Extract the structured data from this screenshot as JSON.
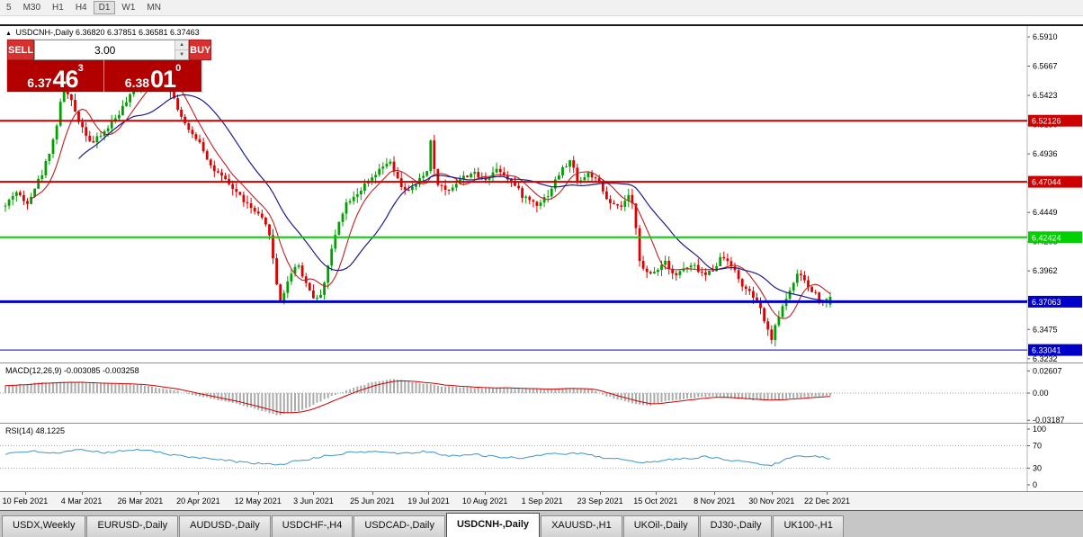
{
  "toolbar": {
    "timeframes": [
      "5",
      "M30",
      "H1",
      "H4",
      "D1",
      "W1",
      "MN"
    ],
    "active": "D1"
  },
  "icons": {
    "symbol_arrow": "▲",
    "up_arrow": "▲",
    "down_arrow": "▼"
  },
  "trade_panel": {
    "sell_label": "SELL",
    "buy_label": "BUY",
    "volume": "3.00",
    "sell_price": {
      "big": "6.37",
      "huge": "46",
      "sup": "3"
    },
    "buy_price": {
      "big": "6.38",
      "huge": "01",
      "sup": "0"
    }
  },
  "tabs": {
    "items": [
      "USDX,Weekly",
      "EURUSD-,Daily",
      "AUDUSD-,Daily",
      "USDCHF-,H4",
      "USDCAD-,Daily",
      "USDCNH-,Daily",
      "XAUUSD-,H1",
      "UKOil-,Daily",
      "DJ30-,Daily",
      "UK100-,H1"
    ],
    "active": "USDCNH-,Daily"
  },
  "chart_data": {
    "type": "candlestick",
    "symbol": "USDCNH-",
    "timeframe": "Daily",
    "header": "USDCNH-,Daily 6.36820 6.37851 6.36581 6.37463",
    "open": 6.3682,
    "high": 6.37851,
    "low": 6.36581,
    "close": 6.37463,
    "ylim": [
      6.32,
      6.6
    ],
    "candle_count": 226,
    "colors": {
      "up": "#00A000",
      "down": "#DD0000",
      "ma_fast": "#C02020",
      "ma_slow": "#1C1C8C",
      "macd_hist": "#ABABAB",
      "macd_signal": "#CC0000",
      "rsi": "#3A96C8"
    },
    "price_axis": [
      {
        "label": "6.5910",
        "price": 6.591
      },
      {
        "label": "6.5667",
        "price": 6.56665
      },
      {
        "label": "6.5423",
        "price": 6.5423
      },
      {
        "label": "6.5180",
        "price": 6.51795
      },
      {
        "label": "6.4936",
        "price": 6.4936
      },
      {
        "label": "6.4693",
        "price": 6.46925
      },
      {
        "label": "6.4449",
        "price": 6.4449
      },
      {
        "label": "6.4206",
        "price": 6.42055
      },
      {
        "label": "6.3962",
        "price": 6.3962
      },
      {
        "label": "6.3719",
        "price": 6.37185
      },
      {
        "label": "6.3475",
        "price": 6.3475
      },
      {
        "label": "6.3232",
        "price": 6.32315
      }
    ],
    "hlines": [
      {
        "label": "6.52126",
        "price": 6.52126,
        "color": "#CC0000",
        "width": 2
      },
      {
        "label": "6.47044",
        "price": 6.47044,
        "color": "#CC0000",
        "width": 2
      },
      {
        "label": "6.42424",
        "price": 6.42424,
        "color": "#00D000",
        "width": 2
      },
      {
        "label": "6.37063",
        "price": 6.37063,
        "color": "#0000C8",
        "width": 3
      },
      {
        "label": "6.33041",
        "price": 6.33041,
        "color": "#0000C8",
        "width": 1
      }
    ],
    "date_axis": [
      {
        "label": "10 Feb 2021",
        "f": 0.026
      },
      {
        "label": "4 Mar 2021",
        "f": 0.094
      },
      {
        "label": "26 Mar 2021",
        "f": 0.165
      },
      {
        "label": "20 Apr 2021",
        "f": 0.235
      },
      {
        "label": "12 May 2021",
        "f": 0.307
      },
      {
        "label": "3 Jun 2021",
        "f": 0.374
      },
      {
        "label": "25 Jun 2021",
        "f": 0.445
      },
      {
        "label": "19 Jul 2021",
        "f": 0.513
      },
      {
        "label": "10 Aug 2021",
        "f": 0.581
      },
      {
        "label": "1 Sep 2021",
        "f": 0.65
      },
      {
        "label": "23 Sep 2021",
        "f": 0.72
      },
      {
        "label": "15 Oct 2021",
        "f": 0.787
      },
      {
        "label": "8 Nov 2021",
        "f": 0.858
      },
      {
        "label": "30 Nov 2021",
        "f": 0.927
      },
      {
        "label": "22 Dec 2021",
        "f": 0.994
      }
    ],
    "price_anchors": [
      [
        0.0,
        6.45
      ],
      [
        0.012,
        6.463
      ],
      [
        0.025,
        6.452
      ],
      [
        0.045,
        6.478
      ],
      [
        0.06,
        6.51
      ],
      [
        0.07,
        6.548
      ],
      [
        0.078,
        6.54
      ],
      [
        0.09,
        6.52
      ],
      [
        0.105,
        6.502
      ],
      [
        0.12,
        6.512
      ],
      [
        0.135,
        6.525
      ],
      [
        0.15,
        6.54
      ],
      [
        0.165,
        6.556
      ],
      [
        0.18,
        6.562
      ],
      [
        0.195,
        6.556
      ],
      [
        0.21,
        6.53
      ],
      [
        0.222,
        6.512
      ],
      [
        0.235,
        6.505
      ],
      [
        0.25,
        6.482
      ],
      [
        0.265,
        6.472
      ],
      [
        0.28,
        6.462
      ],
      [
        0.295,
        6.45
      ],
      [
        0.31,
        6.44
      ],
      [
        0.32,
        6.428
      ],
      [
        0.328,
        6.388
      ],
      [
        0.333,
        6.372
      ],
      [
        0.34,
        6.382
      ],
      [
        0.348,
        6.398
      ],
      [
        0.355,
        6.402
      ],
      [
        0.363,
        6.388
      ],
      [
        0.372,
        6.376
      ],
      [
        0.378,
        6.372
      ],
      [
        0.385,
        6.382
      ],
      [
        0.395,
        6.412
      ],
      [
        0.405,
        6.44
      ],
      [
        0.415,
        6.455
      ],
      [
        0.428,
        6.462
      ],
      [
        0.44,
        6.47
      ],
      [
        0.452,
        6.478
      ],
      [
        0.465,
        6.488
      ],
      [
        0.478,
        6.468
      ],
      [
        0.49,
        6.462
      ],
      [
        0.5,
        6.47
      ],
      [
        0.512,
        6.48
      ],
      [
        0.516,
        6.51
      ],
      [
        0.521,
        6.472
      ],
      [
        0.535,
        6.462
      ],
      [
        0.55,
        6.472
      ],
      [
        0.565,
        6.478
      ],
      [
        0.58,
        6.472
      ],
      [
        0.597,
        6.482
      ],
      [
        0.612,
        6.472
      ],
      [
        0.628,
        6.458
      ],
      [
        0.645,
        6.452
      ],
      [
        0.658,
        6.46
      ],
      [
        0.672,
        6.478
      ],
      [
        0.685,
        6.488
      ],
      [
        0.695,
        6.47
      ],
      [
        0.708,
        6.478
      ],
      [
        0.72,
        6.468
      ],
      [
        0.732,
        6.452
      ],
      [
        0.745,
        6.448
      ],
      [
        0.755,
        6.458
      ],
      [
        0.762,
        6.448
      ],
      [
        0.77,
        6.4
      ],
      [
        0.78,
        6.392
      ],
      [
        0.79,
        6.398
      ],
      [
        0.8,
        6.405
      ],
      [
        0.812,
        6.392
      ],
      [
        0.822,
        6.398
      ],
      [
        0.835,
        6.4
      ],
      [
        0.848,
        6.392
      ],
      [
        0.858,
        6.398
      ],
      [
        0.868,
        6.408
      ],
      [
        0.878,
        6.405
      ],
      [
        0.888,
        6.39
      ],
      [
        0.898,
        6.38
      ],
      [
        0.908,
        6.374
      ],
      [
        0.918,
        6.36
      ],
      [
        0.925,
        6.344
      ],
      [
        0.93,
        6.34
      ],
      [
        0.936,
        6.356
      ],
      [
        0.944,
        6.37
      ],
      [
        0.952,
        6.382
      ],
      [
        0.96,
        6.392
      ],
      [
        0.968,
        6.39
      ],
      [
        0.975,
        6.38
      ],
      [
        0.983,
        6.377
      ],
      [
        0.992,
        6.37
      ],
      [
        1.0,
        6.3746
      ]
    ],
    "macd": {
      "label": "MACD(12,26,9) -0.003085 -0.003258",
      "range": 0.0348,
      "axis": [
        {
          "label": "0.02607",
          "value": 0.02607
        },
        {
          "label": "0.00",
          "value": 0
        },
        {
          "label": "-0.03187",
          "value": -0.03187
        }
      ],
      "anchors": [
        [
          0,
          0.009
        ],
        [
          0.04,
          0.012
        ],
        [
          0.08,
          0.013
        ],
        [
          0.12,
          0.011
        ],
        [
          0.16,
          0.01
        ],
        [
          0.2,
          0.004
        ],
        [
          0.23,
          -0.003
        ],
        [
          0.27,
          -0.01
        ],
        [
          0.3,
          -0.018
        ],
        [
          0.33,
          -0.026
        ],
        [
          0.36,
          -0.02
        ],
        [
          0.39,
          -0.006
        ],
        [
          0.42,
          0.006
        ],
        [
          0.45,
          0.014
        ],
        [
          0.47,
          0.016
        ],
        [
          0.5,
          0.012
        ],
        [
          0.53,
          0.008
        ],
        [
          0.57,
          0.006
        ],
        [
          0.61,
          0.006
        ],
        [
          0.65,
          0.004
        ],
        [
          0.68,
          0.006
        ],
        [
          0.71,
          0.004
        ],
        [
          0.73,
          -0.004
        ],
        [
          0.76,
          -0.012
        ],
        [
          0.78,
          -0.015
        ],
        [
          0.8,
          -0.01
        ],
        [
          0.83,
          -0.006
        ],
        [
          0.86,
          -0.004
        ],
        [
          0.89,
          -0.007
        ],
        [
          0.92,
          -0.009
        ],
        [
          0.95,
          -0.006
        ],
        [
          0.98,
          -0.004
        ],
        [
          1.0,
          -0.0031
        ]
      ]
    },
    "rsi": {
      "label": "RSI(14) 48.1225",
      "axis": [
        {
          "label": "100",
          "value": 100
        },
        {
          "label": "70",
          "value": 70
        },
        {
          "label": "30",
          "value": 30
        },
        {
          "label": "0",
          "value": 0
        }
      ],
      "anchors": [
        [
          0,
          55
        ],
        [
          0.03,
          60
        ],
        [
          0.06,
          57
        ],
        [
          0.09,
          62
        ],
        [
          0.12,
          58
        ],
        [
          0.15,
          63
        ],
        [
          0.18,
          60
        ],
        [
          0.21,
          52
        ],
        [
          0.25,
          46
        ],
        [
          0.29,
          40
        ],
        [
          0.33,
          36
        ],
        [
          0.36,
          44
        ],
        [
          0.39,
          52
        ],
        [
          0.42,
          58
        ],
        [
          0.45,
          60
        ],
        [
          0.48,
          56
        ],
        [
          0.51,
          60
        ],
        [
          0.54,
          52
        ],
        [
          0.57,
          54
        ],
        [
          0.6,
          50
        ],
        [
          0.63,
          48
        ],
        [
          0.66,
          55
        ],
        [
          0.69,
          57
        ],
        [
          0.72,
          50
        ],
        [
          0.75,
          44
        ],
        [
          0.77,
          38
        ],
        [
          0.8,
          45
        ],
        [
          0.83,
          48
        ],
        [
          0.85,
          50
        ],
        [
          0.88,
          44
        ],
        [
          0.91,
          38
        ],
        [
          0.93,
          35
        ],
        [
          0.95,
          48
        ],
        [
          0.97,
          52
        ],
        [
          1.0,
          48.12
        ]
      ]
    }
  }
}
